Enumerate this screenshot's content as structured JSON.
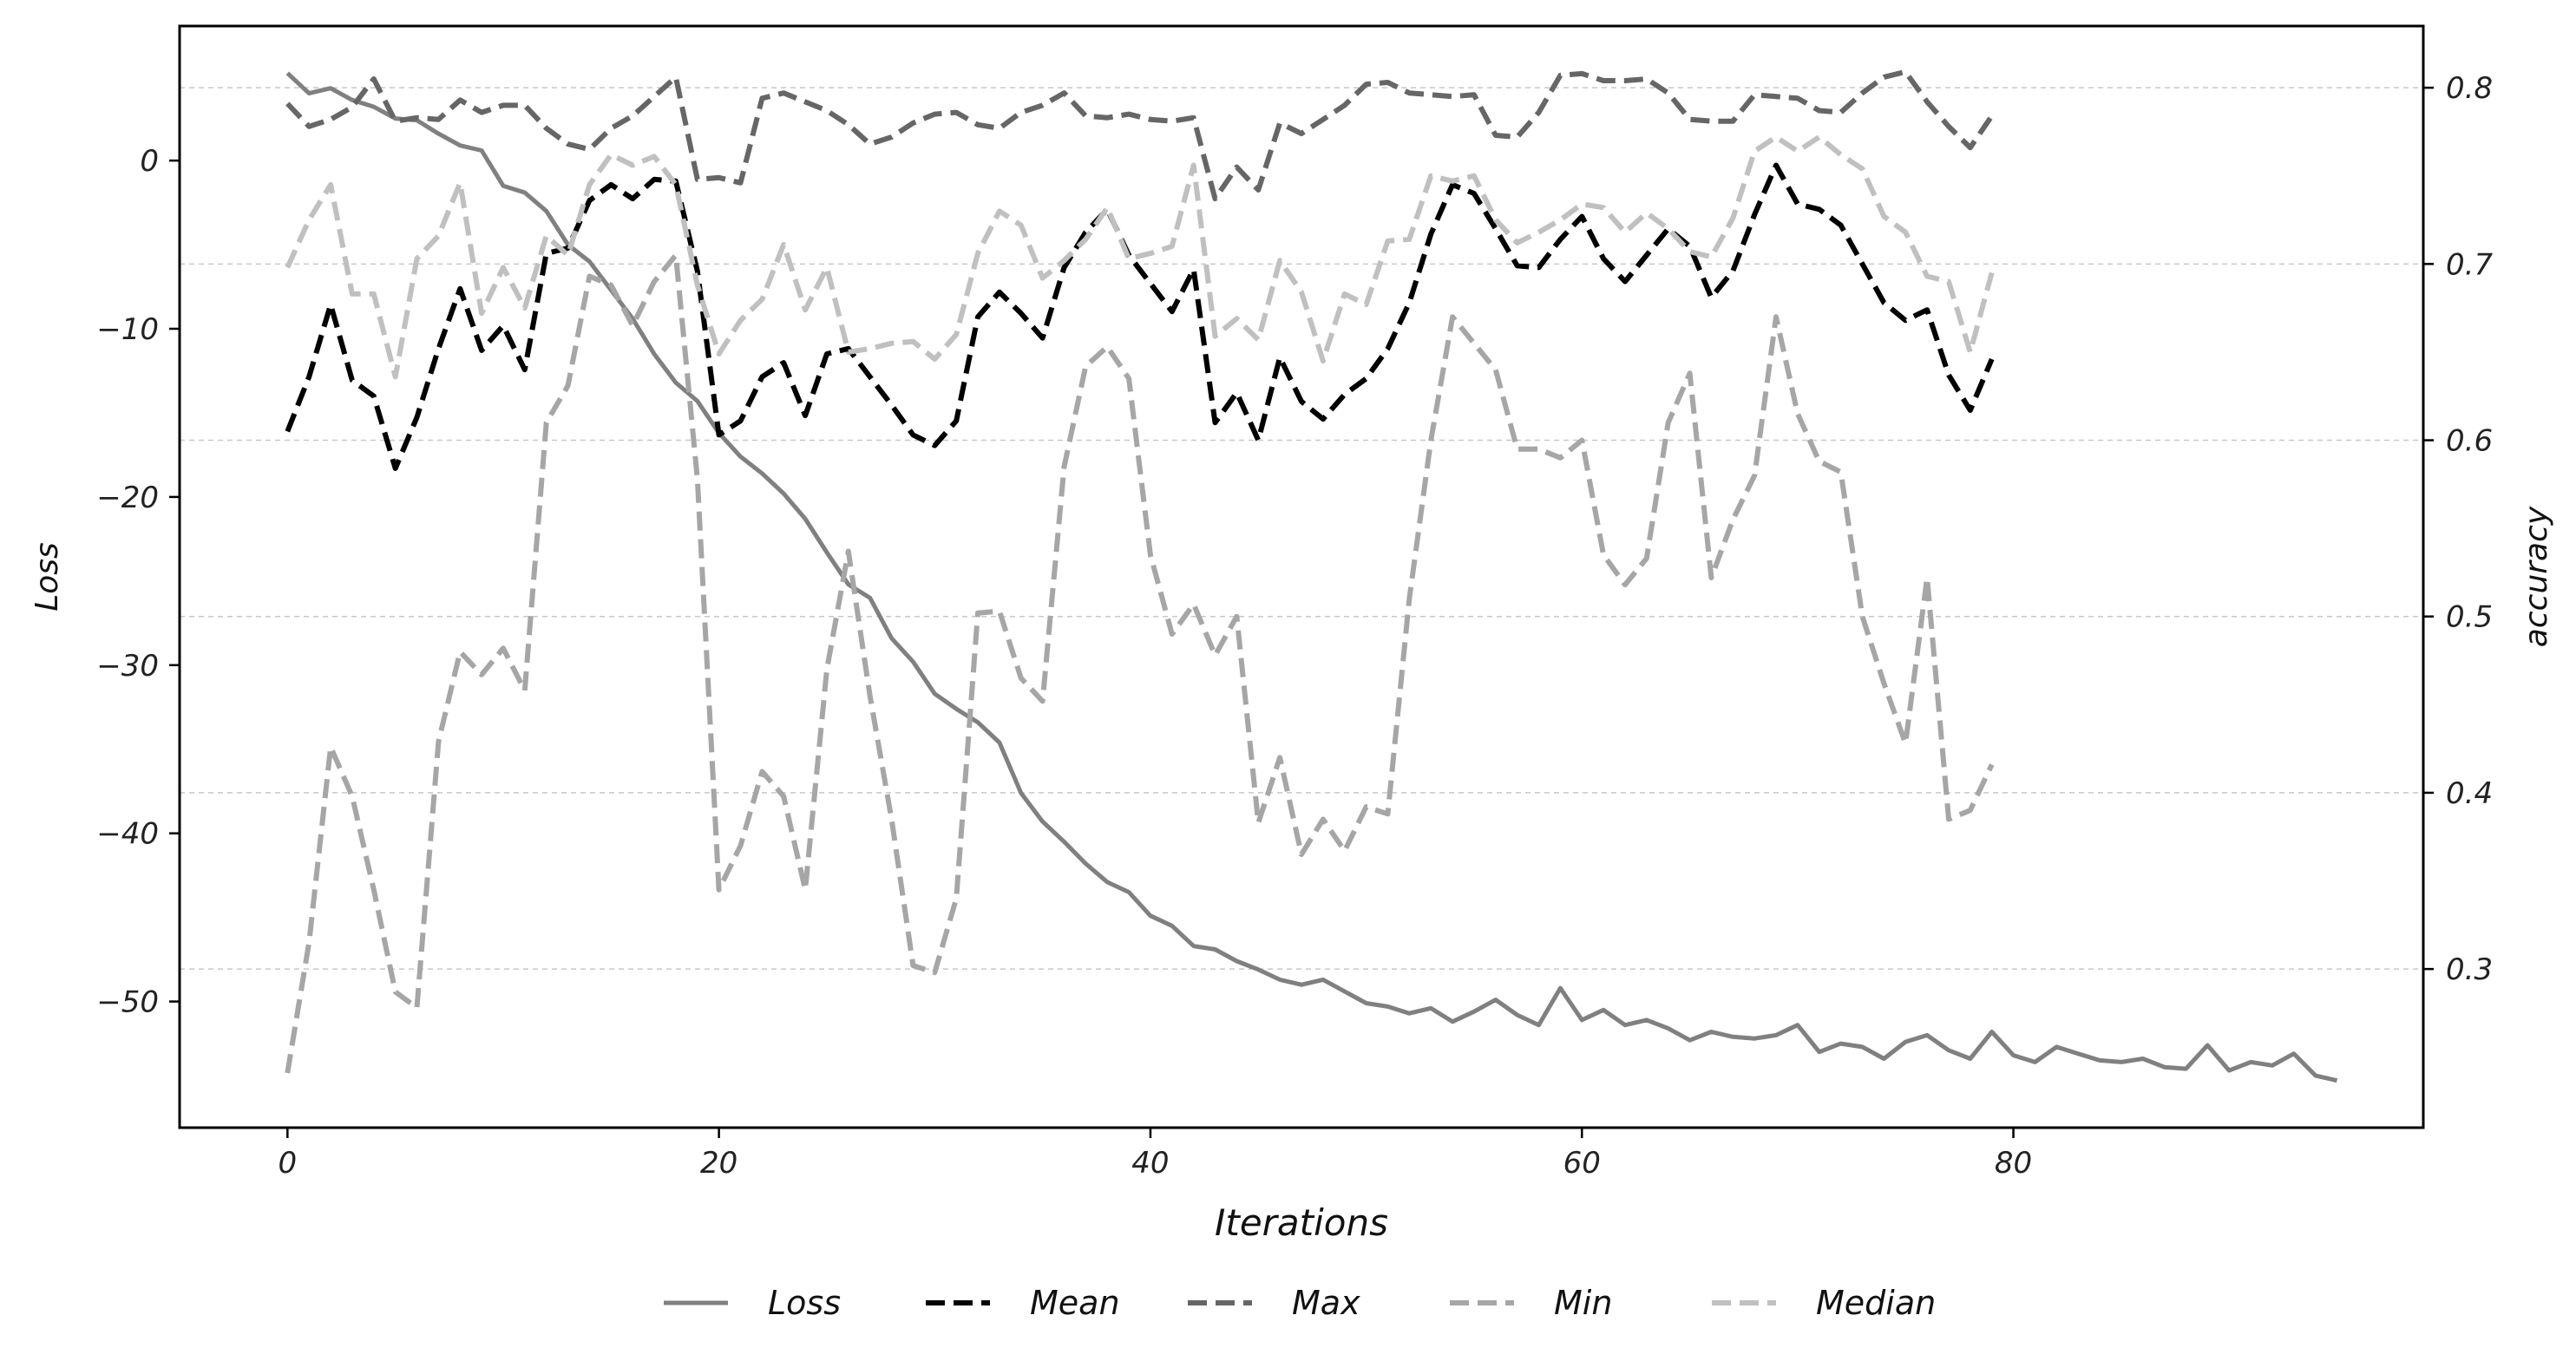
{
  "chart_data": {
    "type": "line",
    "xlabel": "Iterations",
    "ylabel_left": "Loss",
    "ylabel_right": "accuracy",
    "xlim": [
      -5,
      99
    ],
    "ylim_left": [
      -57.5,
      8
    ],
    "ylim_right": [
      0.21,
      0.835
    ],
    "x_ticks": [
      0,
      20,
      40,
      60,
      80
    ],
    "y_left_ticks": [
      0,
      -10,
      -20,
      -30,
      -40,
      -50
    ],
    "y_right_ticks": [
      0.8,
      0.7,
      0.6,
      0.5,
      0.4,
      0.3
    ],
    "grid": "horizontal dashed on right axis",
    "legend_position": "bottom-center",
    "series": [
      {
        "name": "Loss",
        "axis": "left",
        "color": "#808080",
        "dash": "solid",
        "width": 5,
        "values": [
          5.2,
          4.0,
          4.3,
          3.6,
          3.2,
          2.5,
          2.4,
          1.6,
          0.9,
          0.6,
          -1.5,
          -1.9,
          -3.0,
          -5.0,
          -6.0,
          -7.7,
          -9.4,
          -11.5,
          -13.2,
          -14.3,
          -16.2,
          -17.6,
          -18.6,
          -19.8,
          -21.3,
          -23.3,
          -25.2,
          -26.0,
          -28.4,
          -29.8,
          -31.7,
          -32.6,
          -33.4,
          -34.6,
          -37.6,
          -39.3,
          -40.5,
          -41.8,
          -42.9,
          -43.5,
          -44.9,
          -45.5,
          -46.7,
          -46.9,
          -47.6,
          -48.1,
          -48.7,
          -49.0,
          -48.7,
          -49.4,
          -50.1,
          -50.3,
          -50.7,
          -50.4,
          -51.2,
          -50.6,
          -49.9,
          -50.8,
          -51.4,
          -49.2,
          -51.1,
          -50.5,
          -51.4,
          -51.1,
          -51.6,
          -52.3,
          -51.8,
          -52.1,
          -52.2,
          -52.0,
          -51.4,
          -53.0,
          -52.5,
          -52.7,
          -53.4,
          -52.4,
          -52.0,
          -52.9,
          -53.4,
          -51.8,
          -53.2,
          -53.6,
          -52.7,
          -53.1,
          -53.5,
          -53.6,
          -53.4,
          -53.9,
          -54.0,
          -52.6,
          -54.1,
          -53.6,
          -53.8,
          -53.1,
          -54.4,
          -54.7
        ]
      },
      {
        "name": "Mean",
        "axis": "right",
        "color": "#000000",
        "dash": "dashed",
        "width": 6,
        "values": [
          0.605,
          0.636,
          0.677,
          0.634,
          0.625,
          0.584,
          0.613,
          0.652,
          0.686,
          0.651,
          0.665,
          0.64,
          0.706,
          0.709,
          0.736,
          0.745,
          0.737,
          0.748,
          0.747,
          0.696,
          0.603,
          0.611,
          0.636,
          0.644,
          0.614,
          0.649,
          0.652,
          0.636,
          0.62,
          0.603,
          0.597,
          0.611,
          0.67,
          0.684,
          0.672,
          0.658,
          0.698,
          0.718,
          0.731,
          0.705,
          0.689,
          0.673,
          0.697,
          0.61,
          0.627,
          0.6,
          0.647,
          0.622,
          0.612,
          0.626,
          0.635,
          0.652,
          0.678,
          0.717,
          0.745,
          0.74,
          0.72,
          0.699,
          0.698,
          0.714,
          0.727,
          0.703,
          0.69,
          0.705,
          0.72,
          0.71,
          0.681,
          0.696,
          0.728,
          0.756,
          0.734,
          0.731,
          0.722,
          0.7,
          0.678,
          0.668,
          0.674,
          0.637,
          0.617,
          0.646
        ]
      },
      {
        "name": "Max",
        "axis": "right",
        "color": "#666666",
        "dash": "dashed",
        "width": 6,
        "values": [
          0.791,
          0.778,
          0.782,
          0.789,
          0.805,
          0.781,
          0.783,
          0.782,
          0.793,
          0.786,
          0.79,
          0.79,
          0.777,
          0.768,
          0.765,
          0.777,
          0.784,
          0.795,
          0.806,
          0.748,
          0.749,
          0.746,
          0.794,
          0.797,
          0.792,
          0.787,
          0.779,
          0.768,
          0.772,
          0.78,
          0.785,
          0.786,
          0.779,
          0.777,
          0.786,
          0.79,
          0.797,
          0.784,
          0.783,
          0.785,
          0.782,
          0.781,
          0.783,
          0.737,
          0.755,
          0.742,
          0.78,
          0.774,
          0.782,
          0.79,
          0.802,
          0.803,
          0.797,
          0.796,
          0.795,
          0.796,
          0.773,
          0.772,
          0.786,
          0.807,
          0.808,
          0.804,
          0.804,
          0.805,
          0.797,
          0.782,
          0.781,
          0.781,
          0.796,
          0.795,
          0.794,
          0.787,
          0.786,
          0.797,
          0.806,
          0.809,
          0.792,
          0.778,
          0.766,
          0.784
        ]
      },
      {
        "name": "Min",
        "axis": "right",
        "color": "#a6a6a6",
        "dash": "dashed",
        "width": 6,
        "values": [
          0.241,
          0.315,
          0.426,
          0.398,
          0.345,
          0.287,
          0.278,
          0.429,
          0.48,
          0.467,
          0.482,
          0.458,
          0.61,
          0.631,
          0.693,
          0.688,
          0.665,
          0.69,
          0.705,
          0.578,
          0.345,
          0.37,
          0.412,
          0.398,
          0.345,
          0.47,
          0.537,
          0.455,
          0.385,
          0.302,
          0.298,
          0.34,
          0.502,
          0.503,
          0.465,
          0.452,
          0.585,
          0.642,
          0.653,
          0.635,
          0.535,
          0.49,
          0.507,
          0.478,
          0.5,
          0.383,
          0.42,
          0.365,
          0.385,
          0.367,
          0.392,
          0.388,
          0.51,
          0.6,
          0.67,
          0.655,
          0.64,
          0.595,
          0.595,
          0.59,
          0.6,
          0.535,
          0.518,
          0.533,
          0.61,
          0.638,
          0.522,
          0.555,
          0.58,
          0.67,
          0.615,
          0.588,
          0.582,
          0.5,
          0.462,
          0.428,
          0.522,
          0.385,
          0.39,
          0.416
        ]
      },
      {
        "name": "Median",
        "axis": "right",
        "color": "#c0c0c0",
        "dash": "dashed",
        "width": 6,
        "values": [
          0.698,
          0.725,
          0.745,
          0.683,
          0.683,
          0.636,
          0.703,
          0.716,
          0.746,
          0.672,
          0.698,
          0.675,
          0.716,
          0.705,
          0.745,
          0.762,
          0.756,
          0.761,
          0.745,
          0.688,
          0.649,
          0.668,
          0.68,
          0.711,
          0.674,
          0.698,
          0.65,
          0.652,
          0.655,
          0.656,
          0.646,
          0.66,
          0.706,
          0.73,
          0.722,
          0.692,
          0.702,
          0.714,
          0.732,
          0.703,
          0.706,
          0.71,
          0.756,
          0.659,
          0.669,
          0.657,
          0.702,
          0.684,
          0.645,
          0.683,
          0.677,
          0.713,
          0.714,
          0.75,
          0.747,
          0.75,
          0.725,
          0.712,
          0.718,
          0.725,
          0.734,
          0.732,
          0.718,
          0.729,
          0.72,
          0.707,
          0.704,
          0.726,
          0.764,
          0.772,
          0.764,
          0.772,
          0.762,
          0.754,
          0.727,
          0.718,
          0.693,
          0.69,
          0.65,
          0.695
        ]
      }
    ]
  }
}
